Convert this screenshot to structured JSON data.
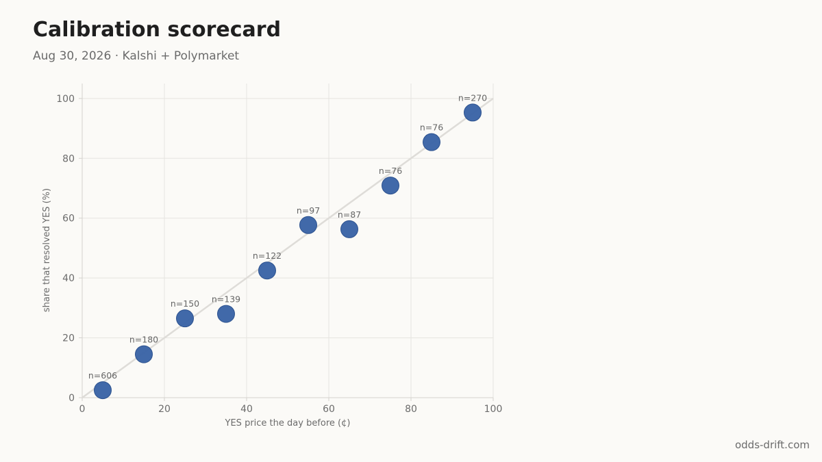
{
  "header": {
    "title": "Calibration scorecard",
    "subtitle": "Aug 30, 2026 · Kalshi + Polymarket"
  },
  "footer": {
    "source": "odds-drift.com"
  },
  "colors": {
    "point": "#3b64a6",
    "point_stroke": "#2d528f",
    "diagonal": "#dedcd8",
    "grid": "#e6e4e0",
    "axis": "#d4d2ce"
  },
  "chart_data": {
    "type": "scatter",
    "xlabel": "YES price the day before (¢)",
    "ylabel": "share that resolved YES (%)",
    "xlim": [
      0,
      100
    ],
    "ylim": [
      0,
      105
    ],
    "xticks": [
      0,
      20,
      40,
      60,
      80,
      100
    ],
    "yticks": [
      0,
      20,
      40,
      60,
      80,
      100
    ],
    "grid": true,
    "reference_line": "y = x",
    "points": [
      {
        "x": 5,
        "y": 2.5,
        "label": "n=606"
      },
      {
        "x": 15,
        "y": 14.5,
        "label": "n=180"
      },
      {
        "x": 25,
        "y": 26.5,
        "label": "n=150"
      },
      {
        "x": 35,
        "y": 28,
        "label": "n=139"
      },
      {
        "x": 45,
        "y": 42.5,
        "label": "n=122"
      },
      {
        "x": 55,
        "y": 57.7,
        "label": "n=97"
      },
      {
        "x": 65,
        "y": 56.3,
        "label": "n=87"
      },
      {
        "x": 75,
        "y": 70.9,
        "label": "n=76"
      },
      {
        "x": 85,
        "y": 85.4,
        "label": "n=76"
      },
      {
        "x": 95,
        "y": 95.3,
        "label": "n=270"
      }
    ]
  }
}
